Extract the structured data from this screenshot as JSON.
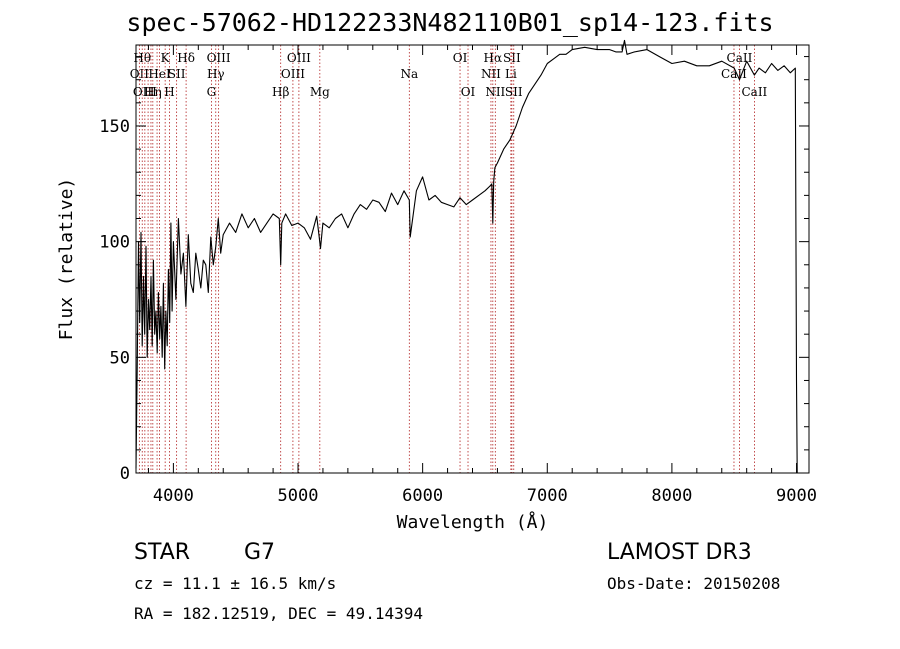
{
  "chart_data": {
    "type": "line",
    "title": "spec-57062-HD122233N482110B01_sp14-123.fits",
    "xlabel": "Wavelength (Å)",
    "ylabel": "Flux (relative)",
    "xlim": [
      3700,
      9100
    ],
    "ylim": [
      0,
      185
    ],
    "xticks": [
      4000,
      5000,
      6000,
      7000,
      8000,
      9000
    ],
    "yticks": [
      0,
      50,
      100,
      150
    ],
    "series": [
      {
        "name": "flux",
        "x": [
          3700,
          3710,
          3720,
          3730,
          3740,
          3750,
          3760,
          3770,
          3780,
          3790,
          3800,
          3810,
          3820,
          3830,
          3840,
          3850,
          3860,
          3870,
          3880,
          3890,
          3900,
          3910,
          3920,
          3930,
          3940,
          3950,
          3960,
          3970,
          3980,
          3990,
          4000,
          4020,
          4040,
          4060,
          4080,
          4100,
          4120,
          4140,
          4160,
          4180,
          4200,
          4220,
          4240,
          4260,
          4280,
          4300,
          4320,
          4340,
          4360,
          4380,
          4400,
          4450,
          4500,
          4550,
          4600,
          4650,
          4700,
          4750,
          4800,
          4850,
          4861,
          4870,
          4900,
          4950,
          5000,
          5050,
          5100,
          5150,
          5170,
          5180,
          5200,
          5250,
          5300,
          5350,
          5400,
          5450,
          5500,
          5550,
          5600,
          5650,
          5700,
          5750,
          5800,
          5850,
          5893,
          5900,
          5950,
          6000,
          6050,
          6100,
          6150,
          6200,
          6250,
          6300,
          6350,
          6400,
          6450,
          6500,
          6540,
          6555,
          6563,
          6570,
          6580,
          6600,
          6650,
          6700,
          6750,
          6800,
          6850,
          6900,
          6950,
          7000,
          7050,
          7100,
          7150,
          7200,
          7300,
          7400,
          7500,
          7550,
          7600,
          7620,
          7640,
          7700,
          7800,
          7900,
          8000,
          8100,
          8200,
          8300,
          8400,
          8500,
          8542,
          8600,
          8662,
          8700,
          8750,
          8800,
          8850,
          8900,
          8950,
          8990,
          9000,
          9005
        ],
        "y": [
          2,
          45,
          100,
          65,
          104,
          55,
          85,
          60,
          98,
          50,
          75,
          62,
          85,
          55,
          92,
          60,
          70,
          52,
          78,
          58,
          72,
          50,
          82,
          45,
          70,
          55,
          88,
          65,
          108,
          70,
          100,
          75,
          110,
          86,
          95,
          72,
          103,
          82,
          78,
          95,
          88,
          80,
          92,
          90,
          78,
          102,
          90,
          98,
          110,
          95,
          103,
          108,
          104,
          112,
          106,
          110,
          104,
          108,
          112,
          110,
          90,
          108,
          112,
          107,
          108,
          106,
          101,
          111,
          102,
          97,
          108,
          106,
          110,
          112,
          106,
          112,
          116,
          114,
          118,
          117,
          113,
          121,
          116,
          122,
          118,
          102,
          122,
          128,
          118,
          120,
          117,
          116,
          115,
          119,
          116,
          118,
          120,
          122,
          124,
          125,
          108,
          126,
          132,
          134,
          140,
          144,
          150,
          158,
          164,
          168,
          172,
          177,
          179,
          181,
          181,
          183,
          184,
          183,
          183,
          182,
          182,
          187,
          181,
          182,
          183,
          180,
          177,
          178,
          176,
          176,
          178,
          175,
          170,
          178,
          172,
          175,
          173,
          177,
          174,
          176,
          173,
          175,
          40,
          0
        ]
      }
    ],
    "lines": [
      {
        "w": 3727,
        "label": "OII",
        "row": 2
      },
      {
        "w": 3750,
        "label": "Hθ",
        "row": 1
      },
      {
        "w": 3771,
        "label": "OIII",
        "row": 3
      },
      {
        "w": 3797,
        "label": "",
        "row": 0
      },
      {
        "w": 3820,
        "label": "",
        "row": 0
      },
      {
        "w": 3835,
        "label": "Hη",
        "row": 3
      },
      {
        "w": 3869,
        "label": "",
        "row": 0
      },
      {
        "w": 3889,
        "label": "HeI",
        "row": 2
      },
      {
        "w": 3934,
        "label": "K",
        "row": 1
      },
      {
        "w": 3969,
        "label": "H",
        "row": 3
      },
      {
        "w": 4026,
        "label": "SII",
        "row": 2
      },
      {
        "w": 4102,
        "label": "Hδ",
        "row": 1
      },
      {
        "w": 4305,
        "label": "G",
        "row": 3
      },
      {
        "w": 4340,
        "label": "Hγ",
        "row": 2
      },
      {
        "w": 4363,
        "label": "OIII",
        "row": 1
      },
      {
        "w": 4861,
        "label": "Hβ",
        "row": 3
      },
      {
        "w": 4959,
        "label": "OIII",
        "row": 2
      },
      {
        "w": 5007,
        "label": "OIII",
        "row": 1
      },
      {
        "w": 5175,
        "label": "Mg",
        "row": 3
      },
      {
        "w": 5893,
        "label": "Na",
        "row": 2
      },
      {
        "w": 6300,
        "label": "OI",
        "row": 1
      },
      {
        "w": 6364,
        "label": "OI",
        "row": 3
      },
      {
        "w": 6548,
        "label": "NII",
        "row": 2
      },
      {
        "w": 6563,
        "label": "Hα",
        "row": 1
      },
      {
        "w": 6583,
        "label": "NII",
        "row": 3
      },
      {
        "w": 6708,
        "label": "Li",
        "row": 2
      },
      {
        "w": 6716,
        "label": "SII",
        "row": 1
      },
      {
        "w": 6731,
        "label": "SII",
        "row": 3
      },
      {
        "w": 8498,
        "label": "CaII",
        "row": 2
      },
      {
        "w": 8542,
        "label": "CaII",
        "row": 1
      },
      {
        "w": 8662,
        "label": "CaII",
        "row": 3
      }
    ]
  },
  "info": {
    "class": "STAR",
    "subclass": "G7",
    "survey": "LAMOST DR3",
    "cz": "cz = 11.1 ± 16.5 km/s",
    "obs_date": "Obs-Date: 20150208",
    "coords": "RA = 182.12519, DEC =  49.14394"
  },
  "colors": {
    "line_marker": "#b22222",
    "axes": "#000000"
  }
}
